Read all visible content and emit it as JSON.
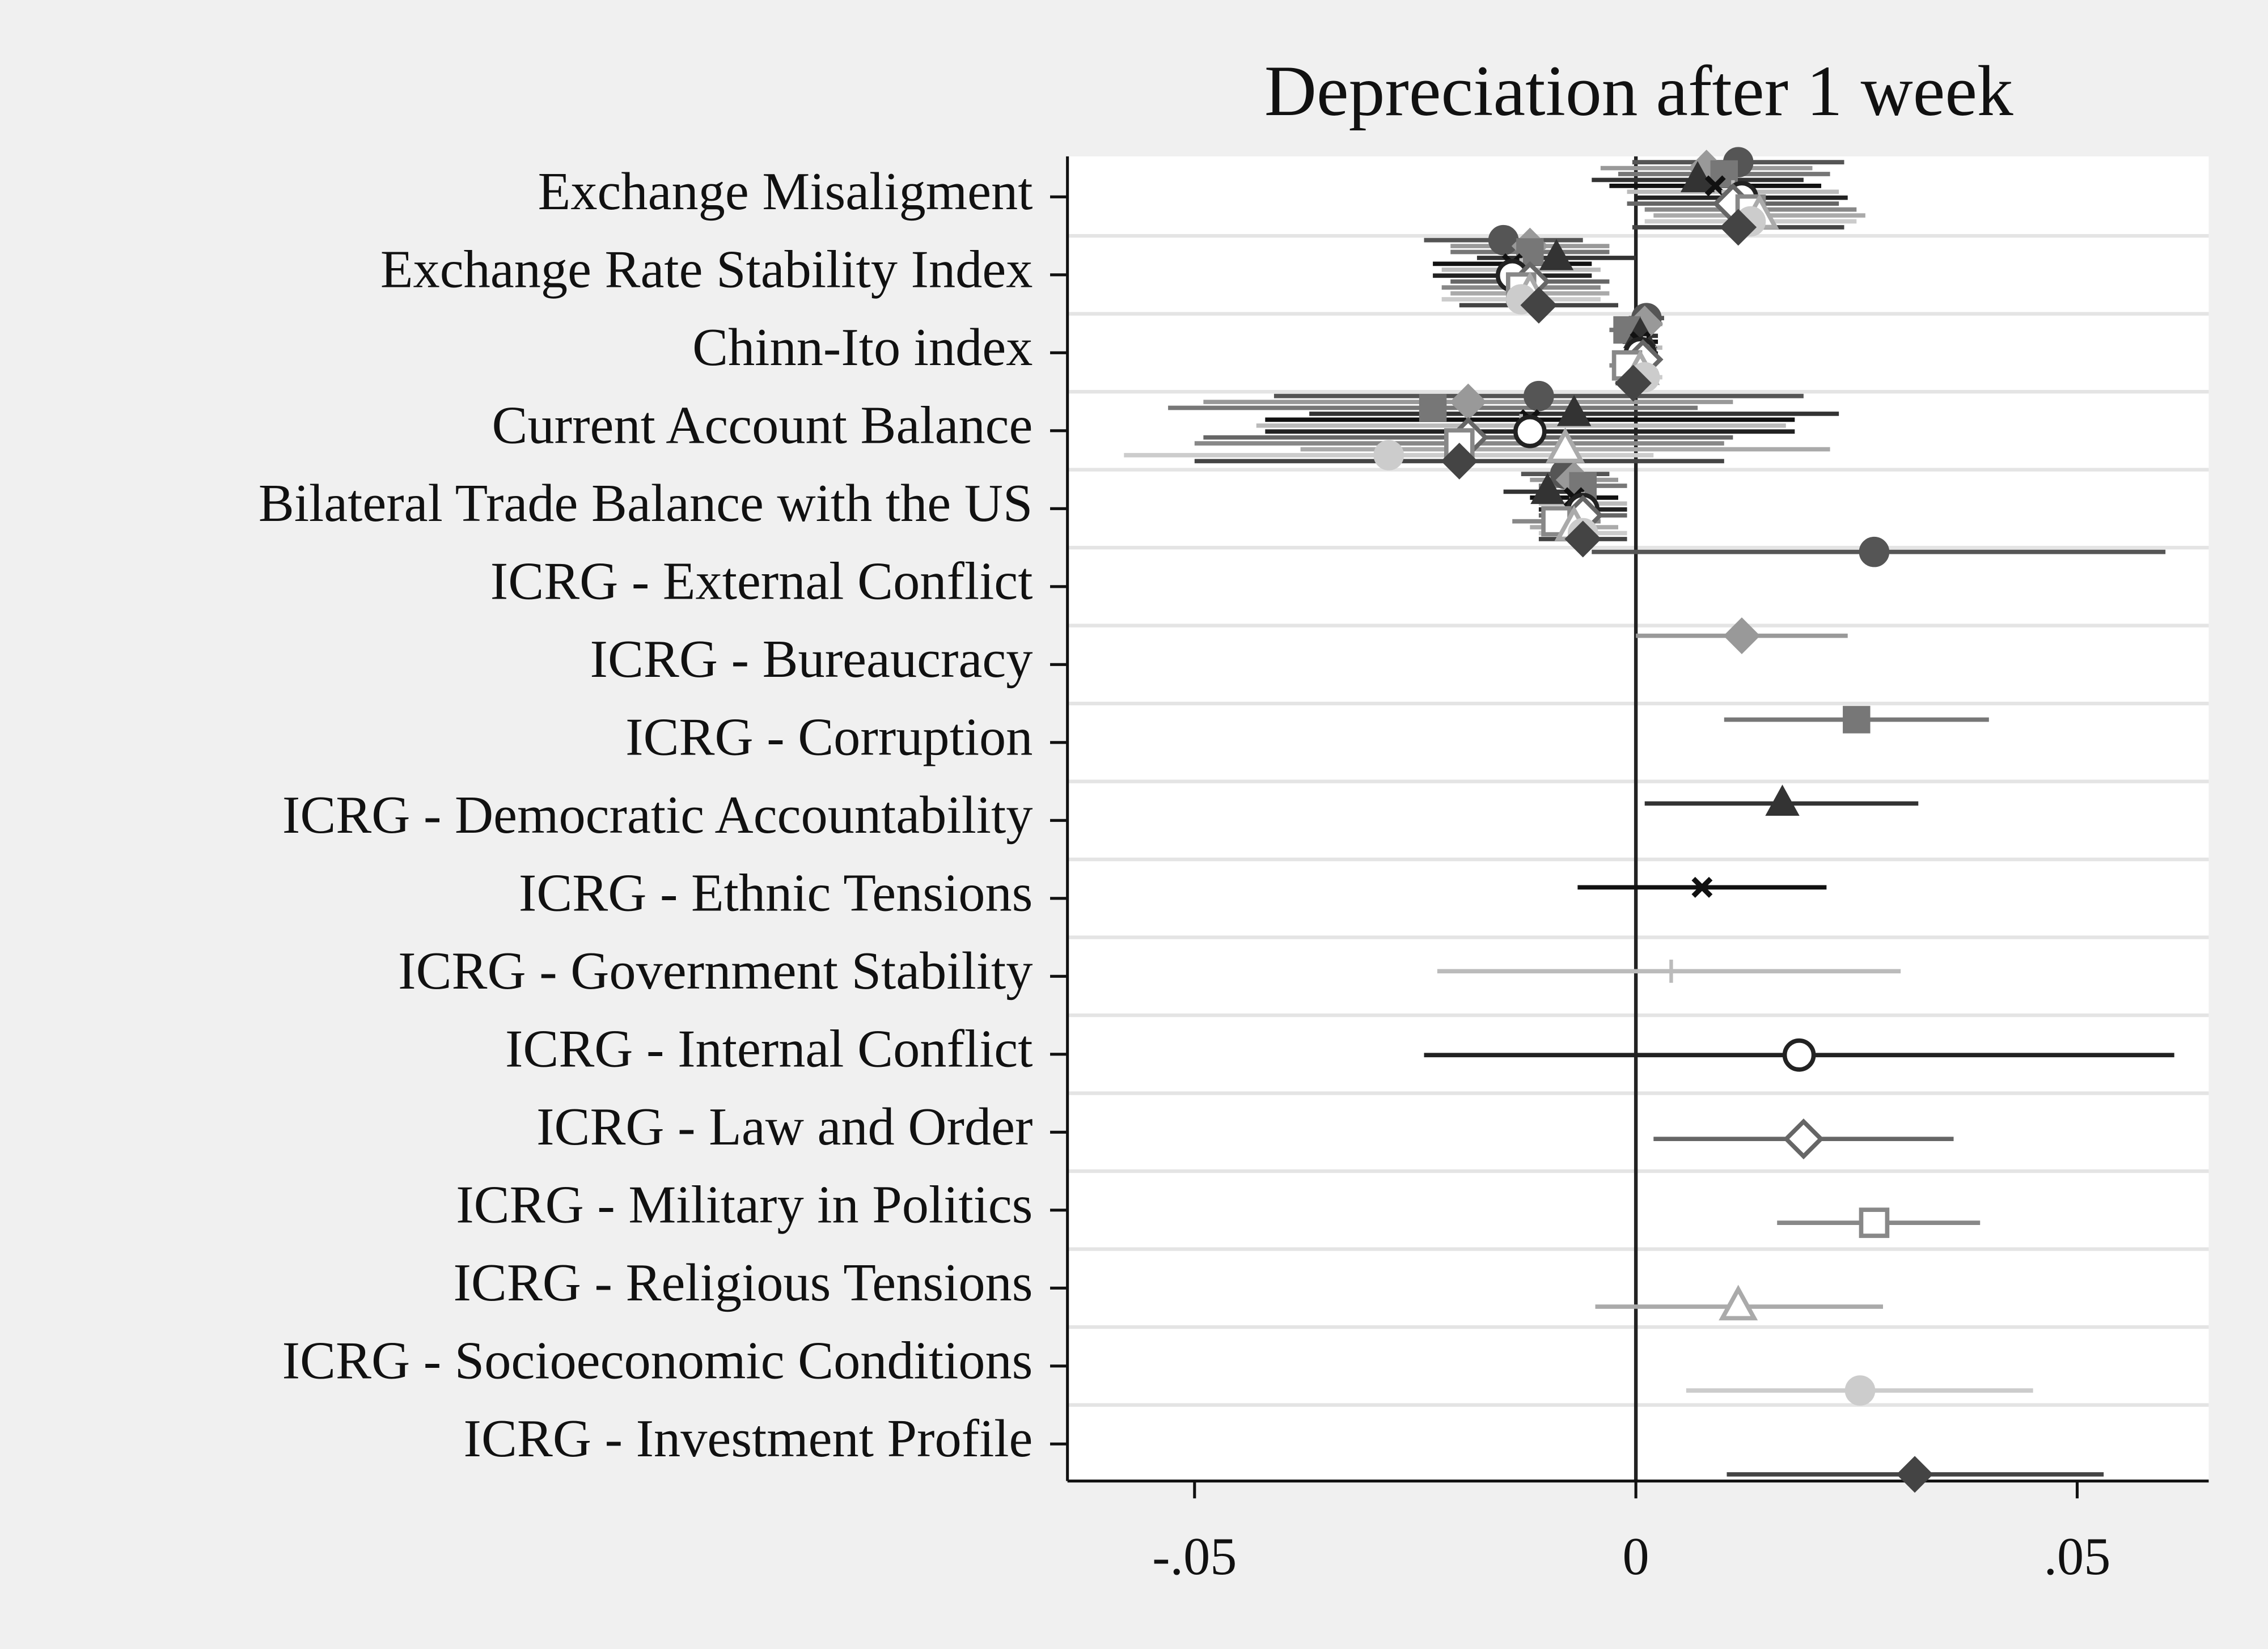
{
  "chart_data": {
    "type": "coefplot",
    "title": "Depreciation after 1 week",
    "categories": [
      "Exchange Misaligment",
      "Exchange Rate Stability Index",
      "Chinn-Ito index",
      "Current Account Balance",
      "Bilateral Trade Balance with the US",
      "ICRG - External Conflict",
      "ICRG - Bureaucracy",
      "ICRG - Corruption",
      "ICRG - Democratic Accountability",
      "ICRG - Ethnic Tensions",
      "ICRG - Government Stability",
      "ICRG - Internal Conflict",
      "ICRG - Law and Order",
      "ICRG - Military in Politics",
      "ICRG - Religious Tensions",
      "ICRG - Socioeconomic Conditions",
      "ICRG - Investment Profile"
    ],
    "xlim": [
      -0.0644,
      0.0649
    ],
    "xticks": [
      {
        "value": -0.05,
        "label": "-.05"
      },
      0,
      {
        "value": 0.05,
        "label": ".05"
      }
    ],
    "xline": 0,
    "grid": true,
    "series": [
      {
        "color": "#555555",
        "marker": "circle",
        "hollow": false,
        "values": [
          0.0116,
          -0.015,
          0.0012,
          -0.011,
          -0.008,
          0.027,
          null,
          null,
          null,
          null,
          null,
          null,
          null,
          null,
          null,
          null,
          null
        ],
        "lower": [
          -0.0004,
          -0.024,
          -0.0008,
          -0.041,
          -0.013,
          -0.005,
          null,
          null,
          null,
          null,
          null,
          null,
          null,
          null,
          null,
          null,
          null
        ],
        "upper": [
          0.0236,
          -0.006,
          0.0032,
          0.019,
          -0.003,
          0.06,
          null,
          null,
          null,
          null,
          null,
          null,
          null,
          null,
          null,
          null,
          null
        ]
      },
      {
        "color": "#999999",
        "marker": "diamond",
        "hollow": false,
        "values": [
          0.008,
          -0.012,
          0.001,
          -0.019,
          -0.007,
          null,
          0.012,
          null,
          null,
          null,
          null,
          null,
          null,
          null,
          null,
          null,
          null
        ],
        "lower": [
          -0.004,
          -0.021,
          -0.001,
          -0.049,
          -0.012,
          null,
          0.0,
          null,
          null,
          null,
          null,
          null,
          null,
          null,
          null,
          null,
          null
        ],
        "upper": [
          0.02,
          -0.003,
          0.003,
          0.011,
          -0.002,
          null,
          0.024,
          null,
          null,
          null,
          null,
          null,
          null,
          null,
          null,
          null,
          null
        ]
      },
      {
        "color": "#777777",
        "marker": "square",
        "hollow": false,
        "values": [
          0.01,
          -0.012,
          -0.001,
          -0.023,
          -0.006,
          null,
          null,
          0.025,
          null,
          null,
          null,
          null,
          null,
          null,
          null,
          null,
          null
        ],
        "lower": [
          -0.002,
          -0.021,
          -0.003,
          -0.053,
          -0.011,
          null,
          null,
          0.01,
          null,
          null,
          null,
          null,
          null,
          null,
          null,
          null,
          null
        ],
        "upper": [
          0.022,
          -0.003,
          0.001,
          0.007,
          -0.001,
          null,
          null,
          0.04,
          null,
          null,
          null,
          null,
          null,
          null,
          null,
          null,
          null
        ]
      },
      {
        "color": "#333333",
        "marker": "triangle",
        "hollow": false,
        "values": [
          0.007,
          -0.009,
          0.0005,
          -0.007,
          -0.01,
          null,
          null,
          null,
          0.0166,
          null,
          null,
          null,
          null,
          null,
          null,
          null,
          null
        ],
        "lower": [
          -0.005,
          -0.018,
          -0.0015,
          -0.037,
          -0.015,
          null,
          null,
          null,
          0.001,
          null,
          null,
          null,
          null,
          null,
          null,
          null,
          null
        ],
        "upper": [
          0.019,
          0.0,
          0.0025,
          0.023,
          -0.005,
          null,
          null,
          null,
          0.032,
          null,
          null,
          null,
          null,
          null,
          null,
          null,
          null
        ]
      },
      {
        "color": "#111111",
        "marker": "x",
        "hollow": false,
        "values": [
          0.009,
          -0.014,
          0.0005,
          -0.012,
          -0.007,
          null,
          null,
          null,
          null,
          0.0075,
          null,
          null,
          null,
          null,
          null,
          null,
          null
        ],
        "lower": [
          -0.003,
          -0.023,
          -0.0015,
          -0.042,
          -0.012,
          null,
          null,
          null,
          null,
          -0.0066,
          null,
          null,
          null,
          null,
          null,
          null,
          null
        ],
        "upper": [
          0.021,
          -0.005,
          0.0025,
          0.018,
          -0.002,
          null,
          null,
          null,
          null,
          0.0216,
          null,
          null,
          null,
          null,
          null,
          null,
          null
        ]
      },
      {
        "color": "#bbbbbb",
        "marker": "plus",
        "hollow": false,
        "values": [
          0.011,
          -0.013,
          0.001,
          -0.013,
          -0.006,
          null,
          null,
          null,
          null,
          null,
          0.004,
          null,
          null,
          null,
          null,
          null,
          null
        ],
        "lower": [
          -0.001,
          -0.022,
          -0.001,
          -0.043,
          -0.011,
          null,
          null,
          null,
          null,
          null,
          -0.0225,
          null,
          null,
          null,
          null,
          null,
          null
        ],
        "upper": [
          0.023,
          -0.004,
          0.003,
          0.017,
          -0.001,
          null,
          null,
          null,
          null,
          null,
          0.03,
          null,
          null,
          null,
          null,
          null,
          null
        ]
      },
      {
        "color": "#222222",
        "marker": "circle",
        "hollow": true,
        "values": [
          0.012,
          -0.014,
          0.0005,
          -0.012,
          -0.006,
          null,
          null,
          null,
          null,
          null,
          null,
          0.0185,
          null,
          null,
          null,
          null,
          null
        ],
        "lower": [
          0.0,
          -0.023,
          -0.0015,
          -0.042,
          -0.011,
          null,
          null,
          null,
          null,
          null,
          null,
          -0.024,
          null,
          null,
          null,
          null,
          null
        ],
        "upper": [
          0.024,
          -0.005,
          0.0025,
          0.018,
          -0.001,
          null,
          null,
          null,
          null,
          null,
          null,
          0.061,
          null,
          null,
          null,
          null,
          null
        ]
      },
      {
        "color": "#666666",
        "marker": "diamond",
        "hollow": true,
        "values": [
          0.011,
          -0.012,
          0.0008,
          -0.019,
          -0.006,
          null,
          null,
          null,
          null,
          null,
          null,
          null,
          0.019,
          null,
          null,
          null,
          null
        ],
        "lower": [
          -0.001,
          -0.021,
          -0.0012,
          -0.049,
          -0.011,
          null,
          null,
          null,
          null,
          null,
          null,
          null,
          0.002,
          null,
          null,
          null,
          null
        ],
        "upper": [
          0.023,
          -0.003,
          0.0028,
          0.011,
          -0.001,
          null,
          null,
          null,
          null,
          null,
          null,
          null,
          0.036,
          null,
          null,
          null,
          null
        ]
      },
      {
        "color": "#888888",
        "marker": "square",
        "hollow": true,
        "values": [
          0.013,
          -0.013,
          -0.001,
          -0.02,
          -0.009,
          null,
          null,
          null,
          null,
          null,
          null,
          null,
          null,
          0.027,
          null,
          null,
          null
        ],
        "lower": [
          0.001,
          -0.022,
          -0.003,
          -0.05,
          -0.014,
          null,
          null,
          null,
          null,
          null,
          null,
          null,
          null,
          0.016,
          null,
          null,
          null
        ],
        "upper": [
          0.025,
          -0.004,
          0.001,
          0.01,
          -0.004,
          null,
          null,
          null,
          null,
          null,
          null,
          null,
          null,
          0.039,
          null,
          null,
          null
        ]
      },
      {
        "color": "#aaaaaa",
        "marker": "triangle",
        "hollow": true,
        "values": [
          0.014,
          -0.012,
          0.0005,
          -0.008,
          -0.007,
          null,
          null,
          null,
          null,
          null,
          null,
          null,
          null,
          null,
          0.0116,
          null,
          null
        ],
        "lower": [
          0.002,
          -0.021,
          -0.0015,
          -0.038,
          -0.012,
          null,
          null,
          null,
          null,
          null,
          null,
          null,
          null,
          null,
          -0.0046,
          null,
          null
        ],
        "upper": [
          0.026,
          -0.003,
          0.0025,
          0.022,
          -0.002,
          null,
          null,
          null,
          null,
          null,
          null,
          null,
          null,
          null,
          0.028,
          null,
          null
        ]
      },
      {
        "color": "#cccccc",
        "marker": "circle",
        "hollow": false,
        "values": [
          0.013,
          -0.013,
          0.001,
          -0.028,
          -0.006,
          null,
          null,
          null,
          null,
          null,
          null,
          null,
          null,
          null,
          null,
          0.0254,
          null
        ],
        "lower": [
          0.001,
          -0.022,
          -0.001,
          -0.058,
          -0.011,
          null,
          null,
          null,
          null,
          null,
          null,
          null,
          null,
          null,
          null,
          0.0057,
          null
        ],
        "upper": [
          0.025,
          -0.004,
          0.003,
          0.002,
          -0.001,
          null,
          null,
          null,
          null,
          null,
          null,
          null,
          null,
          null,
          null,
          0.045,
          null
        ]
      },
      {
        "color": "#444444",
        "marker": "diamond",
        "hollow": false,
        "values": [
          0.0116,
          -0.011,
          -0.0003,
          -0.02,
          -0.006,
          null,
          null,
          null,
          null,
          null,
          null,
          null,
          null,
          null,
          null,
          null,
          0.0316
        ],
        "lower": [
          -0.0004,
          -0.02,
          -0.0023,
          -0.05,
          -0.011,
          null,
          null,
          null,
          null,
          null,
          null,
          null,
          null,
          null,
          null,
          null,
          0.0103
        ],
        "upper": [
          0.0236,
          -0.002,
          0.0017,
          0.01,
          -0.001,
          null,
          null,
          null,
          null,
          null,
          null,
          null,
          null,
          null,
          null,
          null,
          0.053
        ]
      }
    ]
  }
}
